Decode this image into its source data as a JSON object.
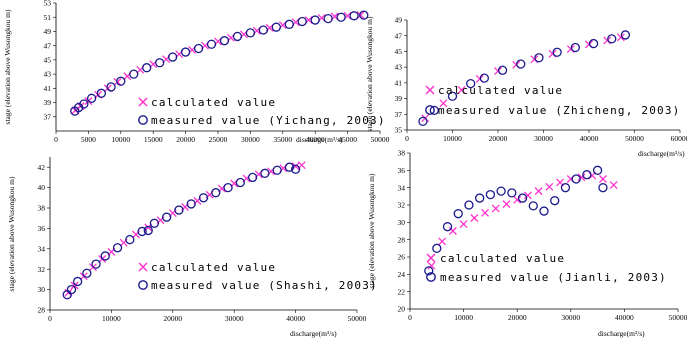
{
  "chart_data": [
    {
      "type": "scatter",
      "station": "Yichang",
      "xlabel": "discharge(m³/s)",
      "ylabel": "stage (elevation above Wusongkou m)",
      "xlim": [
        0,
        50000
      ],
      "ylim": [
        35,
        53
      ],
      "xticks": [
        0,
        5000,
        10000,
        15000,
        20000,
        25000,
        30000,
        35000,
        40000,
        45000,
        50000
      ],
      "yticks": [
        37,
        39,
        41,
        43,
        45,
        47,
        49,
        51,
        53
      ],
      "grid": false,
      "legend_position": "lower-center",
      "series": [
        {
          "name": "calculated value",
          "marker": "x",
          "color": "#ff33cc",
          "points": [
            [
              3000,
              37.9
            ],
            [
              3800,
              38.5
            ],
            [
              5000,
              39.2
            ],
            [
              6500,
              40.1
            ],
            [
              8000,
              41.0
            ],
            [
              9500,
              41.9
            ],
            [
              11000,
              42.7
            ],
            [
              13000,
              43.6
            ],
            [
              15000,
              44.4
            ],
            [
              17000,
              45.1
            ],
            [
              19000,
              45.8
            ],
            [
              21000,
              46.4
            ],
            [
              23000,
              47.0
            ],
            [
              25000,
              47.6
            ],
            [
              27000,
              48.1
            ],
            [
              29000,
              48.6
            ],
            [
              31000,
              49.1
            ],
            [
              33000,
              49.5
            ],
            [
              35000,
              49.9
            ],
            [
              37000,
              50.3
            ],
            [
              39000,
              50.6
            ],
            [
              41000,
              50.9
            ],
            [
              43000,
              51.1
            ],
            [
              45000,
              51.2
            ],
            [
              47000,
              51.3
            ]
          ]
        },
        {
          "name": "measured value (Yichang, 2003)",
          "marker": "o",
          "color": "#1a1a8c",
          "points": [
            [
              2900,
              37.8
            ],
            [
              3500,
              38.3
            ],
            [
              4300,
              38.8
            ],
            [
              5500,
              39.6
            ],
            [
              7000,
              40.3
            ],
            [
              8500,
              41.2
            ],
            [
              10000,
              42.0
            ],
            [
              12000,
              43.0
            ],
            [
              14000,
              43.9
            ],
            [
              16000,
              44.6
            ],
            [
              18000,
              45.4
            ],
            [
              20000,
              46.1
            ],
            [
              22000,
              46.6
            ],
            [
              24000,
              47.2
            ],
            [
              26000,
              47.7
            ],
            [
              28000,
              48.3
            ],
            [
              30000,
              48.8
            ],
            [
              32000,
              49.2
            ],
            [
              34000,
              49.6
            ],
            [
              36000,
              50.0
            ],
            [
              38000,
              50.4
            ],
            [
              40000,
              50.6
            ],
            [
              42000,
              50.8
            ],
            [
              44000,
              51.0
            ],
            [
              46000,
              51.2
            ],
            [
              47500,
              51.3
            ]
          ]
        }
      ]
    },
    {
      "type": "scatter",
      "station": "Zhicheng",
      "xlabel": "discharge(m³/s)",
      "ylabel": "stage (elevation above Wusongkou m)",
      "xlim": [
        0,
        60000
      ],
      "ylim": [
        35,
        49
      ],
      "xticks": [
        0,
        10000,
        20000,
        30000,
        40000,
        50000,
        60000
      ],
      "yticks": [
        35,
        37,
        39,
        41,
        43,
        45,
        47,
        49
      ],
      "grid": false,
      "legend_position": "lower-left",
      "series": [
        {
          "name": "calculated value",
          "marker": "x",
          "color": "#ff33cc",
          "points": [
            [
              4000,
              36.5
            ],
            [
              8000,
              38.4
            ],
            [
              12000,
              40.1
            ],
            [
              16000,
              41.5
            ],
            [
              20000,
              42.5
            ],
            [
              24000,
              43.3
            ],
            [
              28000,
              44.0
            ],
            [
              32000,
              44.7
            ],
            [
              36000,
              45.3
            ],
            [
              40000,
              45.9
            ],
            [
              44000,
              46.4
            ],
            [
              47000,
              46.8
            ]
          ]
        },
        {
          "name": "measured value (Zhicheng, 2003)",
          "marker": "o",
          "color": "#1a1a8c",
          "points": [
            [
              3500,
              36.1
            ],
            [
              6000,
              37.5
            ],
            [
              10000,
              39.3
            ],
            [
              14000,
              40.9
            ],
            [
              17000,
              41.6
            ],
            [
              21000,
              42.6
            ],
            [
              25000,
              43.4
            ],
            [
              29000,
              44.2
            ],
            [
              33000,
              44.9
            ],
            [
              37000,
              45.5
            ],
            [
              41000,
              46.0
            ],
            [
              45000,
              46.6
            ],
            [
              48000,
              47.1
            ]
          ]
        }
      ]
    },
    {
      "type": "scatter",
      "station": "Shashi",
      "xlabel": "discharge(m³/s)",
      "ylabel": "stage (elevation above Wusongkou m)",
      "xlim": [
        0,
        50000
      ],
      "ylim": [
        28,
        43
      ],
      "xticks": [
        0,
        10000,
        20000,
        30000,
        40000,
        50000
      ],
      "yticks": [
        28,
        30,
        32,
        34,
        36,
        38,
        40,
        42
      ],
      "grid": false,
      "legend_position": "lower-center",
      "series": [
        {
          "name": "calculated value",
          "marker": "x",
          "color": "#ff33cc",
          "points": [
            [
              3000,
              29.7
            ],
            [
              4000,
              30.4
            ],
            [
              5500,
              31.3
            ],
            [
              7000,
              32.2
            ],
            [
              8500,
              33.0
            ],
            [
              10000,
              33.7
            ],
            [
              12000,
              34.6
            ],
            [
              14000,
              35.4
            ],
            [
              16000,
              36.1
            ],
            [
              18000,
              36.8
            ],
            [
              20000,
              37.5
            ],
            [
              22000,
              38.1
            ],
            [
              24000,
              38.7
            ],
            [
              26000,
              39.3
            ],
            [
              28000,
              39.9
            ],
            [
              30000,
              40.4
            ],
            [
              32000,
              40.9
            ],
            [
              34000,
              41.3
            ],
            [
              36000,
              41.6
            ],
            [
              38000,
              41.9
            ],
            [
              40000,
              42.1
            ],
            [
              41000,
              42.2
            ]
          ]
        },
        {
          "name": "measured value (Shashi, 2003)",
          "marker": "o",
          "color": "#1a1a8c",
          "points": [
            [
              2800,
              29.5
            ],
            [
              3500,
              30.0
            ],
            [
              4500,
              30.8
            ],
            [
              6000,
              31.6
            ],
            [
              7500,
              32.5
            ],
            [
              9000,
              33.3
            ],
            [
              11000,
              34.1
            ],
            [
              13000,
              34.9
            ],
            [
              15000,
              35.7
            ],
            [
              16000,
              35.8
            ],
            [
              17000,
              36.5
            ],
            [
              19000,
              37.1
            ],
            [
              21000,
              37.8
            ],
            [
              23000,
              38.4
            ],
            [
              25000,
              39.0
            ],
            [
              27000,
              39.5
            ],
            [
              29000,
              40.0
            ],
            [
              31000,
              40.5
            ],
            [
              33000,
              41.0
            ],
            [
              35000,
              41.4
            ],
            [
              37000,
              41.7
            ],
            [
              39000,
              42.0
            ],
            [
              40000,
              41.8
            ]
          ]
        }
      ]
    },
    {
      "type": "scatter",
      "station": "Jianli",
      "xlabel": "discharge(m³/s)",
      "ylabel": "stage (elevation above Wusongkou m)",
      "xlim": [
        0,
        50000
      ],
      "ylim": [
        20,
        38
      ],
      "xticks": [
        0,
        10000,
        20000,
        30000,
        40000,
        50000
      ],
      "yticks": [
        20,
        22,
        24,
        26,
        28,
        30,
        32,
        34,
        36,
        38
      ],
      "grid": false,
      "legend_position": "lower-center",
      "series": [
        {
          "name": "calculated value",
          "marker": "x",
          "color": "#ff33cc",
          "points": [
            [
              4000,
              25.0
            ],
            [
              6000,
              27.8
            ],
            [
              8000,
              29.0
            ],
            [
              10000,
              29.8
            ],
            [
              12000,
              30.5
            ],
            [
              14000,
              31.1
            ],
            [
              16000,
              31.6
            ],
            [
              18000,
              32.1
            ],
            [
              20000,
              32.6
            ],
            [
              22000,
              33.1
            ],
            [
              24000,
              33.6
            ],
            [
              26000,
              34.1
            ],
            [
              28000,
              34.6
            ],
            [
              30000,
              35.0
            ],
            [
              32000,
              35.2
            ],
            [
              34000,
              35.4
            ],
            [
              36000,
              35.0
            ],
            [
              38000,
              34.3
            ]
          ]
        },
        {
          "name": "measured value (Jianli, 2003)",
          "marker": "o",
          "color": "#1a1a8c",
          "points": [
            [
              3500,
              24.4
            ],
            [
              5000,
              27.0
            ],
            [
              7000,
              29.5
            ],
            [
              9000,
              31.0
            ],
            [
              11000,
              32.0
            ],
            [
              13000,
              32.8
            ],
            [
              15000,
              33.2
            ],
            [
              17000,
              33.6
            ],
            [
              19000,
              33.4
            ],
            [
              21000,
              32.8
            ],
            [
              23000,
              31.9
            ],
            [
              25000,
              31.3
            ],
            [
              27000,
              32.5
            ],
            [
              29000,
              34.0
            ],
            [
              31000,
              35.0
            ],
            [
              33000,
              35.5
            ],
            [
              35000,
              36.0
            ],
            [
              36000,
              34.0
            ]
          ]
        }
      ]
    }
  ]
}
